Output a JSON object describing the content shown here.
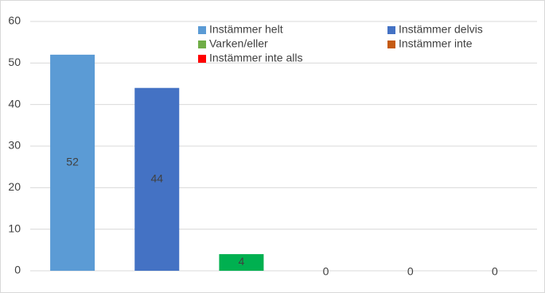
{
  "chart_data": {
    "type": "bar",
    "categories": [
      null,
      null,
      null,
      null,
      null,
      null
    ],
    "values": [
      52,
      44,
      4,
      0,
      0,
      0
    ],
    "colors": [
      "#5b9bd5",
      "#4472c4",
      "#00b050",
      "#c55a11",
      "#ff0000",
      "#a5a5a5"
    ],
    "legend": [
      {
        "name": "Instämmer helt",
        "color": "#5b9bd5"
      },
      {
        "name": "Instämmer delvis",
        "color": "#4472c4"
      },
      {
        "name": "Varken/eller",
        "color": "#70ad47"
      },
      {
        "name": "Instämmer inte",
        "color": "#c55a11"
      },
      {
        "name": "Instämmer inte alls",
        "color": "#ff0000"
      }
    ],
    "ylim": [
      0,
      60
    ],
    "yticks": [
      0,
      10,
      20,
      30,
      40,
      50,
      60
    ],
    "grid": true
  }
}
